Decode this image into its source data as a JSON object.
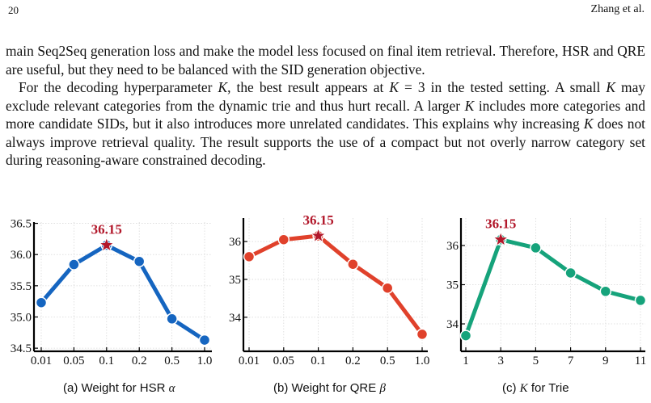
{
  "header": {
    "page_number": "20",
    "running_head": "Zhang et al."
  },
  "paragraphs": [
    "main Seq2Seq generation loss and make the model less focused on final item retrieval. Therefore, HSR and QRE are useful, but they need to be balanced with the SID generation objective.",
    "For the decoding hyperparameter K, the best result appears at K = 3 in the tested setting. A small K may exclude relevant categories from the dynamic trie and thus hurt recall. A larger K includes more categories and more candidate SIDs, but it also introduces more unrelated candidates. This explains why increasing K does not always improve retrieval quality. The result supports the use of a compact but not overly narrow category set during reasoning-aware constrained decoding."
  ],
  "captions": {
    "a_prefix": "(a) Weight for HSR ",
    "a_symbol": "α",
    "b_prefix": "(b) Weight for QRE ",
    "b_symbol": "β",
    "c_prefix": "(c) ",
    "c_symbol": "K",
    "c_suffix": " for Trie"
  },
  "chart_data": [
    {
      "type": "line",
      "categories": [
        "0.01",
        "0.05",
        "0.1",
        "0.2",
        "0.5",
        "1.0"
      ],
      "values": [
        35.23,
        35.84,
        36.15,
        35.89,
        34.97,
        34.63
      ],
      "ylim": [
        34.45,
        36.52
      ],
      "yticks": [
        34.5,
        35.0,
        35.5,
        36.0,
        36.5
      ],
      "ytick_labels": [
        "34.5",
        "35.0",
        "35.5",
        "36.0",
        "36.5"
      ],
      "color": "#1565c0",
      "best_index": 2,
      "best_label": "36.15",
      "best_color": "#b2182b",
      "grid": true
    },
    {
      "type": "line",
      "categories": [
        "0.01",
        "0.05",
        "0.1",
        "0.2",
        "0.5",
        "1.0"
      ],
      "values": [
        35.6,
        36.05,
        36.15,
        35.4,
        34.77,
        33.55
      ],
      "ylim": [
        33.1,
        36.62
      ],
      "yticks": [
        34,
        35,
        36
      ],
      "ytick_labels": [
        "34",
        "35",
        "36"
      ],
      "color": "#e0412b",
      "best_index": 2,
      "best_label": "36.15",
      "best_color": "#b2182b",
      "grid": true
    },
    {
      "type": "line",
      "categories": [
        "1",
        "3",
        "5",
        "7",
        "9",
        "11"
      ],
      "values": [
        33.7,
        36.15,
        35.94,
        35.3,
        34.83,
        34.6
      ],
      "ylim": [
        33.3,
        36.7
      ],
      "yticks": [
        34,
        35,
        36
      ],
      "ytick_labels": [
        "34",
        "35",
        "36"
      ],
      "color": "#16a37b",
      "best_index": 1,
      "best_label": "36.15",
      "best_color": "#b2182b",
      "grid": true
    }
  ]
}
